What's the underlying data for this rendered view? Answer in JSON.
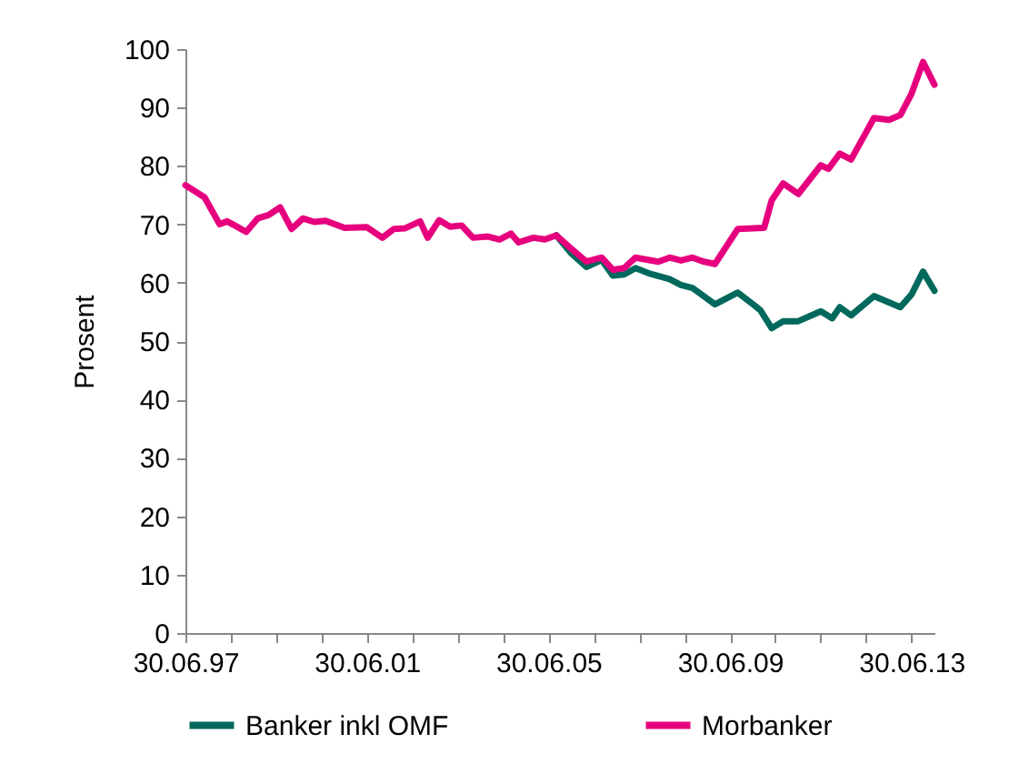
{
  "chart_data": {
    "type": "line",
    "ylabel": "Prosent",
    "xlim": [
      "1997-06-30",
      "2014-01-01"
    ],
    "ylim": [
      0,
      100
    ],
    "xticks": [
      {
        "value": "1997-06-30",
        "label": "30.06.97"
      },
      {
        "value": "1998-06-30",
        "label": null
      },
      {
        "value": "1999-06-30",
        "label": null
      },
      {
        "value": "2000-06-30",
        "label": null
      },
      {
        "value": "2001-06-30",
        "label": "30.06.01"
      },
      {
        "value": "2002-06-30",
        "label": null
      },
      {
        "value": "2003-06-30",
        "label": null
      },
      {
        "value": "2004-06-30",
        "label": null
      },
      {
        "value": "2005-06-30",
        "label": "30.06.05"
      },
      {
        "value": "2006-06-30",
        "label": null
      },
      {
        "value": "2007-06-30",
        "label": null
      },
      {
        "value": "2008-06-30",
        "label": null
      },
      {
        "value": "2009-06-30",
        "label": "30.06.09"
      },
      {
        "value": "2010-06-30",
        "label": null
      },
      {
        "value": "2011-06-30",
        "label": null
      },
      {
        "value": "2012-06-30",
        "label": null
      },
      {
        "value": "2013-06-30",
        "label": "30.06.13"
      }
    ],
    "yticks": [
      0,
      10,
      20,
      30,
      40,
      50,
      60,
      70,
      80,
      90,
      100
    ],
    "grid": false,
    "legend": "bottom",
    "line_style": "solid",
    "marker": "none",
    "series": [
      {
        "name": "Banker inkl OMF",
        "color": "#00695c",
        "x": [
          "2005-09-01",
          "2006-01-01",
          "2006-05-01",
          "2006-09-01",
          "2006-12-01",
          "2007-03-01",
          "2007-06-01",
          "2007-10-01",
          "2008-03-01",
          "2008-06-01",
          "2008-09-01",
          "2009-03-01",
          "2009-09-01",
          "2010-01-01",
          "2010-03-01",
          "2010-06-01",
          "2010-09-01",
          "2011-01-01",
          "2011-07-01",
          "2011-10-01",
          "2011-12-01",
          "2012-03-01",
          "2012-09-01",
          "2013-04-01",
          "2013-07-01",
          "2013-10-01",
          "2014-01-01"
        ],
        "values": [
          68.1,
          65.0,
          62.7,
          63.9,
          61.2,
          61.4,
          62.5,
          61.5,
          60.6,
          59.6,
          59.1,
          56.3,
          58.3,
          56.3,
          55.3,
          52.2,
          53.4,
          53.4,
          55.1,
          53.9,
          55.8,
          54.4,
          57.7,
          55.8,
          58.0,
          61.9,
          58.6
        ]
      },
      {
        "name": "Morbanker",
        "color": "#e6007e",
        "x": [
          "1997-06-30",
          "1997-12-01",
          "1998-04-01",
          "1998-06-01",
          "1998-08-01",
          "1998-11-01",
          "1999-02-01",
          "1999-05-01",
          "1999-08-01",
          "1999-11-01",
          "2000-02-01",
          "2000-05-01",
          "2000-08-01",
          "2001-01-01",
          "2001-06-30",
          "2001-11-01",
          "2002-02-01",
          "2002-05-01",
          "2002-09-01",
          "2002-11-01",
          "2003-02-01",
          "2003-05-01",
          "2003-08-01",
          "2003-11-01",
          "2004-03-01",
          "2004-06-01",
          "2004-09-01",
          "2004-11-01",
          "2005-03-01",
          "2005-06-01",
          "2005-09-01",
          "2006-01-01",
          "2006-05-01",
          "2006-09-01",
          "2006-12-01",
          "2007-03-01",
          "2007-06-01",
          "2007-12-01",
          "2008-03-01",
          "2008-06-01",
          "2008-09-01",
          "2008-12-01",
          "2009-03-01",
          "2009-09-01",
          "2010-04-01",
          "2010-06-01",
          "2010-09-01",
          "2011-01-01",
          "2011-07-01",
          "2011-09-01",
          "2011-12-01",
          "2012-03-01",
          "2012-07-01",
          "2012-09-01",
          "2013-01-01",
          "2013-04-01",
          "2013-07-01",
          "2013-10-01",
          "2014-01-01"
        ],
        "values": [
          76.7,
          74.6,
          70.0,
          70.5,
          69.8,
          68.7,
          71.0,
          71.6,
          72.9,
          69.2,
          71.0,
          70.4,
          70.6,
          69.4,
          69.5,
          67.7,
          69.2,
          69.3,
          70.5,
          67.7,
          70.7,
          69.6,
          69.8,
          67.7,
          67.9,
          67.4,
          68.4,
          66.9,
          67.7,
          67.4,
          68.1,
          65.8,
          63.6,
          64.3,
          62.2,
          62.5,
          64.3,
          63.6,
          64.3,
          63.8,
          64.3,
          63.6,
          63.2,
          69.2,
          69.4,
          74.1,
          77.0,
          75.2,
          80.1,
          79.5,
          82.1,
          81.1,
          85.8,
          88.2,
          87.9,
          88.7,
          92.4,
          97.8,
          93.9
        ]
      }
    ]
  }
}
